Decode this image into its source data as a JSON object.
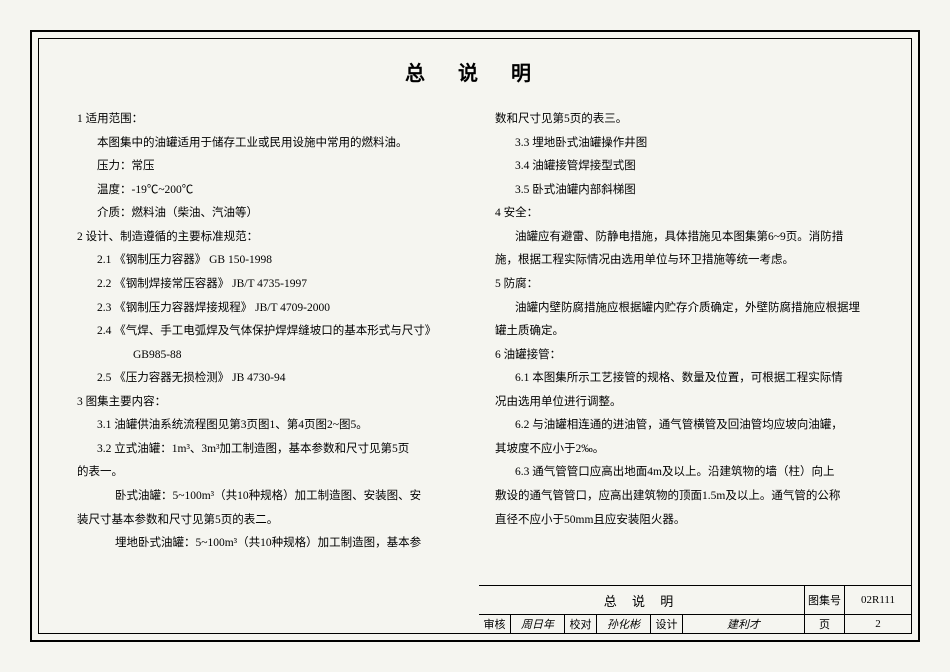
{
  "title": "总  说  明",
  "left_column": [
    {
      "indent": "indent0",
      "text": "1  适用范围："
    },
    {
      "indent": "indent1",
      "text": "本图集中的油罐适用于储存工业或民用设施中常用的燃料油。"
    },
    {
      "indent": "indent1",
      "text": "压力：常压"
    },
    {
      "indent": "indent1",
      "text": "温度：-19℃~200℃"
    },
    {
      "indent": "indent1",
      "text": "介质：燃料油（柴油、汽油等）"
    },
    {
      "indent": "indent0",
      "text": "2  设计、制造遵循的主要标准规范："
    },
    {
      "indent": "indent1",
      "text": "2.1 《钢制压力容器》 GB 150-1998"
    },
    {
      "indent": "indent1",
      "text": "2.2 《钢制焊接常压容器》 JB/T 4735-1997"
    },
    {
      "indent": "indent1",
      "text": "2.3 《钢制压力容器焊接规程》 JB/T 4709-2000"
    },
    {
      "indent": "indent1",
      "text": "2.4 《气焊、手工电弧焊及气体保护焊焊缝坡口的基本形式与尺寸》"
    },
    {
      "indent": "indent3",
      "text": "GB985-88"
    },
    {
      "indent": "indent1",
      "text": "2.5 《压力容器无损检测》 JB 4730-94"
    },
    {
      "indent": "indent0",
      "text": "3  图集主要内容："
    },
    {
      "indent": "indent1",
      "text": "3.1 油罐供油系统流程图见第3页图1、第4页图2~图5。"
    },
    {
      "indent": "indent1",
      "text": "3.2 立式油罐：1m³、3m³加工制造图，基本参数和尺寸见第5页"
    },
    {
      "indent": "indent0",
      "text": "的表一。"
    },
    {
      "indent": "indent2",
      "text": "卧式油罐：5~100m³（共10种规格）加工制造图、安装图、安"
    },
    {
      "indent": "indent0",
      "text": "装尺寸基本参数和尺寸见第5页的表二。"
    },
    {
      "indent": "indent2",
      "text": "埋地卧式油罐：5~100m³（共10种规格）加工制造图，基本参"
    }
  ],
  "right_column": [
    {
      "indent": "indent0",
      "text": "数和尺寸见第5页的表三。"
    },
    {
      "indent": "indent1",
      "text": "3.3  埋地卧式油罐操作井图"
    },
    {
      "indent": "indent1",
      "text": "3.4  油罐接管焊接型式图"
    },
    {
      "indent": "indent1",
      "text": "3.5  卧式油罐内部斜梯图"
    },
    {
      "indent": "indent0",
      "text": "4  安全："
    },
    {
      "indent": "indent1",
      "text": "油罐应有避雷、防静电措施，具体措施见本图集第6~9页。消防措"
    },
    {
      "indent": "indent0",
      "text": "施，根据工程实际情况由选用单位与环卫措施等统一考虑。"
    },
    {
      "indent": "indent0",
      "text": "5  防腐："
    },
    {
      "indent": "indent1",
      "text": "油罐内壁防腐措施应根据罐内贮存介质确定，外壁防腐措施应根据埋"
    },
    {
      "indent": "indent0",
      "text": "罐土质确定。"
    },
    {
      "indent": "indent0",
      "text": "6  油罐接管："
    },
    {
      "indent": "indent1",
      "text": "6.1  本图集所示工艺接管的规格、数量及位置，可根据工程实际情"
    },
    {
      "indent": "indent0",
      "text": "况由选用单位进行调整。"
    },
    {
      "indent": "indent1",
      "text": "6.2  与油罐相连通的进油管，通气管横管及回油管均应坡向油罐，"
    },
    {
      "indent": "indent0",
      "text": "其坡度不应小于2‰。"
    },
    {
      "indent": "indent1",
      "text": "6.3  通气管管口应高出地面4m及以上。沿建筑物的墙（柱）向上"
    },
    {
      "indent": "indent0",
      "text": "敷设的通气管管口，应高出建筑物的顶面1.5m及以上。通气管的公称"
    },
    {
      "indent": "indent0",
      "text": "直径不应小于50mm且应安装阻火器。"
    }
  ],
  "title_block": {
    "main_title": "总 说 明",
    "row_labels": {
      "shenhe": "审核",
      "jiaodui": "校对",
      "sheji": "设计",
      "tujihao": "图集号",
      "ye": "页"
    },
    "shenhe_val": "周日年",
    "jiaodui_val": "孙化彬",
    "sheji_val": "建利才",
    "tujihao_val": "02R111",
    "ye_val": "2"
  }
}
